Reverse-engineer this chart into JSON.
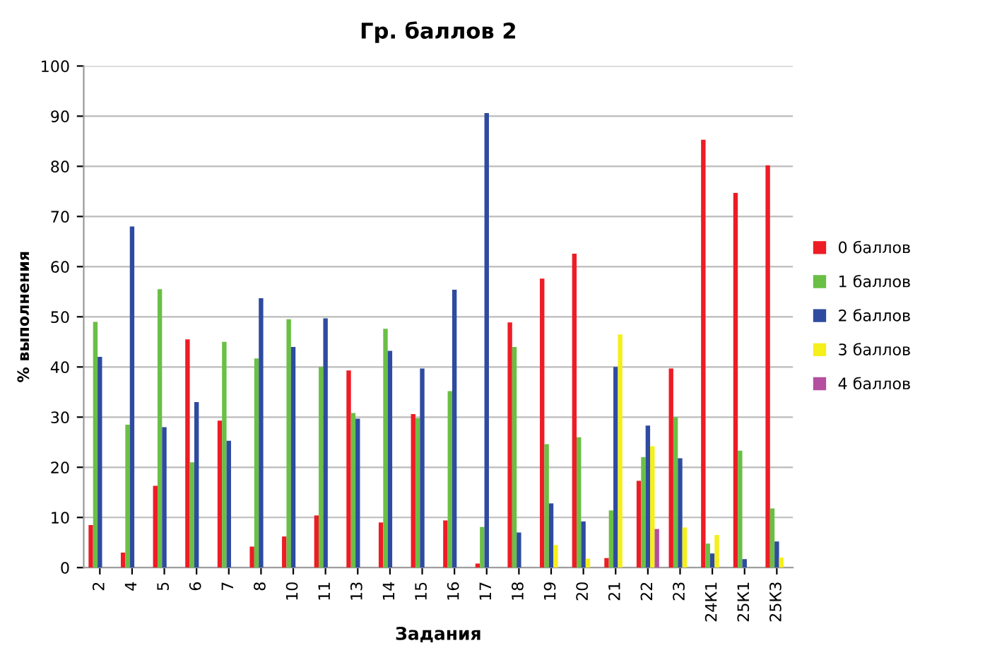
{
  "chart_data": {
    "type": "bar",
    "title": "Гр. баллов 2",
    "xlabel": "Задания",
    "ylabel": "% выполнения",
    "categories": [
      "2",
      "4",
      "5",
      "6",
      "7",
      "8",
      "10",
      "11",
      "13",
      "14",
      "15",
      "16",
      "17",
      "18",
      "19",
      "20",
      "21",
      "22",
      "23",
      "24К1",
      "25К1",
      "25К3"
    ],
    "series": [
      {
        "name": "0 баллов",
        "color": "#ee1c25",
        "values": [
          8.5,
          3,
          16.3,
          45.5,
          29.3,
          4.2,
          6.2,
          10.4,
          39.3,
          9,
          30.6,
          9.4,
          0.8,
          48.9,
          57.6,
          62.6,
          1.9,
          17.3,
          39.7,
          85.3,
          74.7,
          80.2
        ]
      },
      {
        "name": "1 баллов",
        "color": "#6abf45",
        "values": [
          49,
          28.5,
          55.5,
          21,
          45,
          41.7,
          49.5,
          40,
          30.8,
          47.6,
          29.8,
          35.2,
          8.1,
          44,
          24.6,
          26,
          11.4,
          22,
          30,
          4.8,
          23.3,
          11.8
        ]
      },
      {
        "name": "2 баллов",
        "color": "#2e4b9f",
        "values": [
          42,
          68,
          28,
          33,
          25.3,
          53.7,
          44,
          49.7,
          29.7,
          43.2,
          39.7,
          55.4,
          90.6,
          7,
          12.8,
          9.2,
          40,
          28.3,
          21.8,
          2.8,
          1.7,
          5.2
        ]
      },
      {
        "name": "3 баллов",
        "color": "#f5ef1a",
        "values": [
          null,
          null,
          null,
          null,
          null,
          null,
          null,
          null,
          null,
          null,
          null,
          null,
          null,
          null,
          4.5,
          1.8,
          46.5,
          24.2,
          8,
          6.5,
          null,
          2
        ]
      },
      {
        "name": "4 баллов",
        "color": "#b34f9e",
        "values": [
          null,
          null,
          null,
          null,
          null,
          null,
          null,
          null,
          null,
          null,
          null,
          null,
          null,
          null,
          null,
          null,
          null,
          7.7,
          null,
          null,
          null,
          null
        ]
      }
    ],
    "ylim": [
      0,
      100
    ],
    "yticks": [
      0,
      10,
      20,
      30,
      40,
      50,
      60,
      70,
      80,
      90,
      100
    ],
    "grid": "y",
    "legend": "right"
  }
}
